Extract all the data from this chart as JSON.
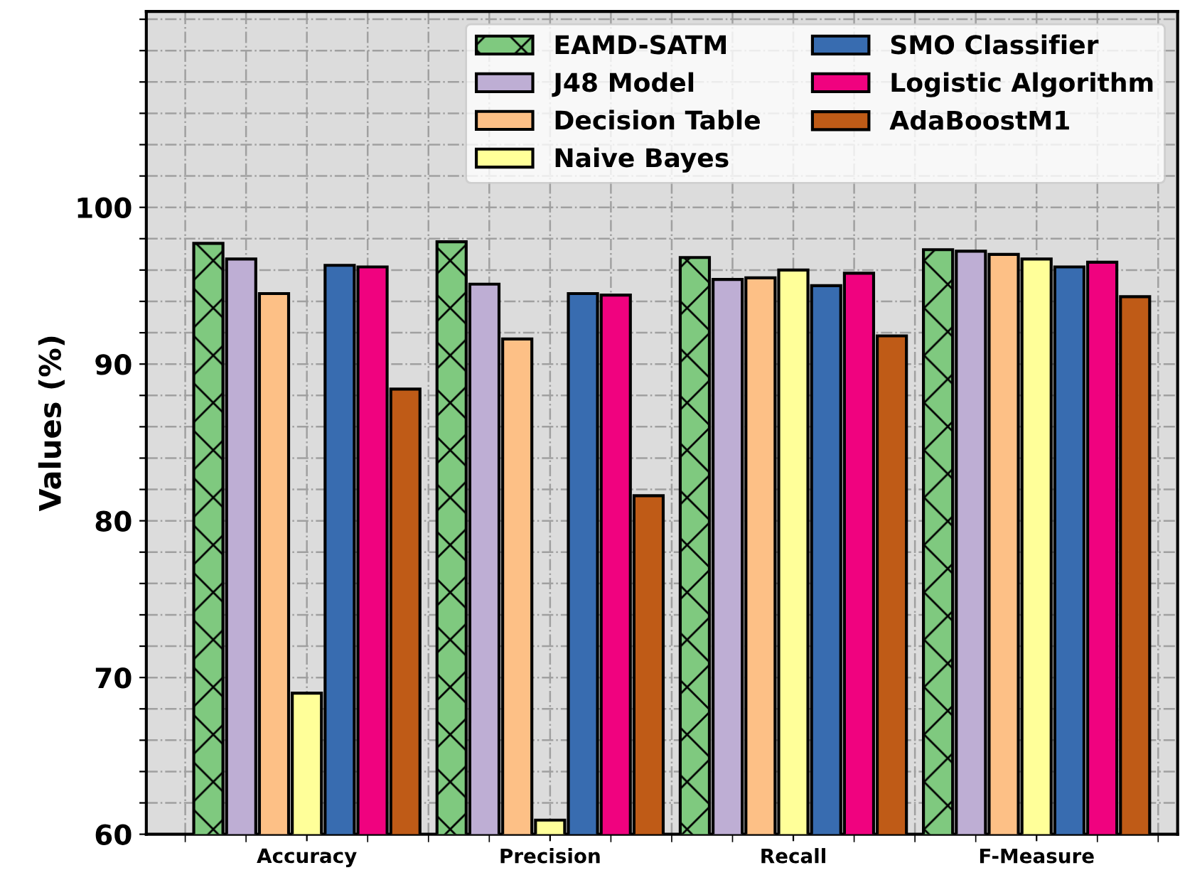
{
  "chart_data": {
    "type": "bar",
    "ylabel": "Values (%)",
    "categories": [
      "Accuracy",
      "Precision",
      "Recall",
      "F-Measure"
    ],
    "series": [
      {
        "name": "EAMD-SATM",
        "color": "#7fc97f",
        "values": [
          97.7,
          97.8,
          96.8,
          97.3
        ]
      },
      {
        "name": "J48 Model",
        "color": "#beaed4",
        "values": [
          96.7,
          95.1,
          95.4,
          97.2
        ]
      },
      {
        "name": "Decision Table",
        "color": "#fdc086",
        "values": [
          94.5,
          91.6,
          95.5,
          97.0
        ]
      },
      {
        "name": "Naive Bayes",
        "color": "#ffff99",
        "values": [
          69.0,
          60.9,
          96.0,
          96.7
        ]
      },
      {
        "name": "SMO Classifier",
        "color": "#386cb0",
        "values": [
          96.3,
          94.5,
          95.0,
          96.2
        ]
      },
      {
        "name": "Logistic Algorithm",
        "color": "#f0027f",
        "values": [
          96.2,
          94.4,
          95.8,
          96.5
        ]
      },
      {
        "name": "AdaBoostM1",
        "color": "#bf5b17",
        "values": [
          88.4,
          81.6,
          91.8,
          94.3
        ]
      }
    ],
    "ylim": [
      60,
      112.5
    ],
    "yticks": [
      60,
      {
        "value": 62,
        "label": null
      },
      {
        "value": 64,
        "label": null
      },
      {
        "value": 66,
        "label": null
      },
      {
        "value": 68,
        "label": null
      },
      70,
      {
        "value": 72,
        "label": null
      },
      {
        "value": 74,
        "label": null
      },
      {
        "value": 76,
        "label": null
      },
      {
        "value": 78,
        "label": null
      },
      80,
      {
        "value": 82,
        "label": null
      },
      {
        "value": 84,
        "label": null
      },
      {
        "value": 86,
        "label": null
      },
      {
        "value": 88,
        "label": null
      },
      90,
      {
        "value": 92,
        "label": null
      },
      {
        "value": 94,
        "label": null
      },
      {
        "value": 96,
        "label": null
      },
      {
        "value": 98,
        "label": null
      },
      100,
      {
        "value": 102,
        "label": null
      },
      {
        "value": 104,
        "label": null
      },
      {
        "value": 106,
        "label": null
      },
      {
        "value": 108,
        "label": null
      },
      {
        "value": 110,
        "label": null
      },
      {
        "value": 112,
        "label": null
      }
    ],
    "grid": true,
    "legend": "top right"
  }
}
